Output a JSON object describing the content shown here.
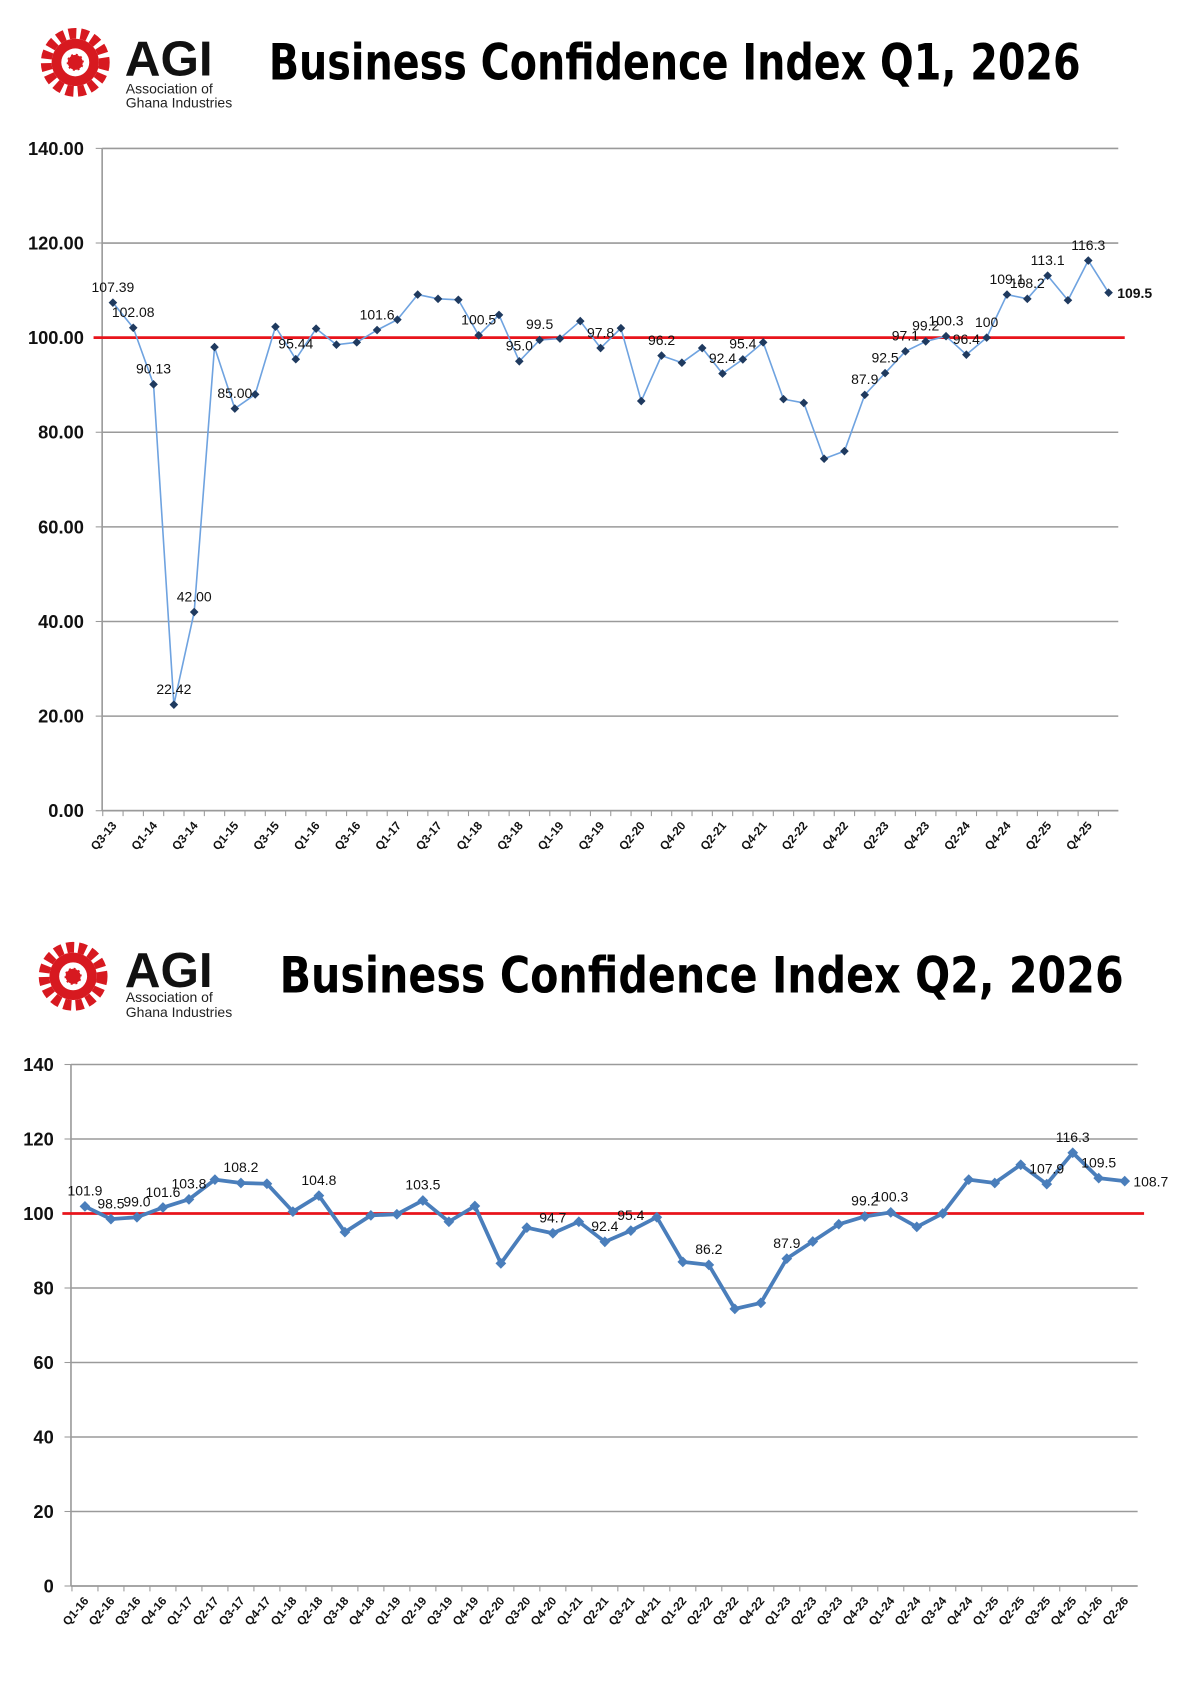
{
  "chart_data": [
    {
      "type": "line",
      "logo": {
        "name": "AGI",
        "line1": "Association of",
        "line2": "Ghana Industries"
      },
      "title": "Business Confidence Index Q1, 2026",
      "categories": [
        "Q3-13",
        null,
        "Q1-14",
        null,
        "Q3-14",
        null,
        "Q1-15",
        null,
        "Q3-15",
        null,
        "Q1-16",
        null,
        "Q3-16",
        null,
        "Q1-17",
        null,
        "Q3-17",
        null,
        "Q1-18",
        null,
        "Q3-18",
        null,
        "Q1-19",
        null,
        "Q3-19",
        null,
        "Q2-20",
        null,
        "Q4-20",
        null,
        "Q2-21",
        null,
        "Q4-21",
        null,
        "Q2-22",
        null,
        "Q4-22",
        null,
        "Q2-23",
        null,
        "Q4-23",
        null,
        "Q2-24",
        null,
        "Q4-24",
        null,
        "Q2-25",
        null,
        "Q4-25",
        null
      ],
      "values": [
        107.39,
        102.08,
        90.13,
        22.42,
        42,
        98,
        85,
        88,
        102.3,
        95.44,
        101.9,
        98.5,
        99,
        101.6,
        103.8,
        109.1,
        108.2,
        108,
        100.5,
        104.8,
        95,
        99.5,
        99.8,
        103.5,
        97.8,
        102,
        86.6,
        96.2,
        94.7,
        97.8,
        92.4,
        95.4,
        99,
        87,
        86.2,
        74.4,
        76,
        87.9,
        92.5,
        97.1,
        99.2,
        100.3,
        96.4,
        100,
        109.1,
        108.2,
        113.1,
        107.9,
        116.3,
        109.5
      ],
      "value_labels": [
        "107.39",
        "102.08",
        "90.13",
        "22.42",
        "42.00",
        null,
        "85.00",
        null,
        null,
        "95.44",
        null,
        null,
        null,
        "101.6",
        null,
        null,
        null,
        null,
        "100.5",
        null,
        "95.0",
        "99.5",
        null,
        null,
        "97.8",
        null,
        null,
        "96.2",
        null,
        null,
        "92.4",
        "95.4",
        null,
        null,
        null,
        null,
        null,
        "87.9",
        "92.5",
        "97.1",
        "99.2",
        "100.3",
        "96.4",
        "100",
        "109.1",
        "108.2",
        "113.1",
        null,
        "116.3",
        "109.5"
      ],
      "color": "#6fa3e0",
      "marker_color": "#1f3a5f",
      "line_width": 1.5,
      "marker_size": 4,
      "last_label_color": "#e8141b",
      "reference_line": {
        "value": 100,
        "color": "#e8141b"
      },
      "ylim": [
        0,
        140
      ],
      "yticks": [
        {
          "value": 0,
          "label": "0.00"
        },
        {
          "value": 20,
          "label": "20.00"
        },
        {
          "value": 40,
          "label": "40.00"
        },
        {
          "value": 60,
          "label": "60.00"
        },
        {
          "value": 80,
          "label": "80.00"
        },
        {
          "value": 100,
          "label": "100.00"
        },
        {
          "value": 120,
          "label": "120.00"
        },
        {
          "value": 140,
          "label": "140.00"
        }
      ],
      "grid": true
    },
    {
      "type": "line",
      "logo": {
        "name": "AGI",
        "line1": "Association of",
        "line2": "Ghana Industries"
      },
      "title": "Business Confidence Index Q2, 2026",
      "categories": [
        "Q1-16",
        "Q2-16",
        "Q3-16",
        "Q4-16",
        "Q1-17",
        "Q2-17",
        "Q3-17",
        "Q4-17",
        "Q1-18",
        "Q2-18",
        "Q3-18",
        "Q4-18",
        "Q1-19",
        "Q2-19",
        "Q3-19",
        "Q4-19",
        "Q2-20",
        "Q3-20",
        "Q4-20",
        "Q1-21",
        "Q2-21",
        "Q3-21",
        "Q4-21",
        "Q1-22",
        "Q2-22",
        "Q3-22",
        "Q4-22",
        "Q1-23",
        "Q2-23",
        "Q3-23",
        "Q4-23",
        "Q1-24",
        "Q2-24",
        "Q3-24",
        "Q4-24",
        "Q1-25",
        "Q2-25",
        "Q3-25",
        "Q4-25",
        "Q1-26",
        "Q2-26"
      ],
      "values": [
        101.9,
        98.5,
        99,
        101.6,
        103.8,
        109.1,
        108.2,
        108,
        100.5,
        104.8,
        95,
        99.5,
        99.8,
        103.5,
        97.8,
        102,
        86.6,
        96.2,
        94.7,
        97.8,
        92.4,
        95.4,
        99,
        87,
        86.2,
        74.4,
        76,
        87.9,
        92.5,
        97.1,
        99.2,
        100.3,
        96.4,
        100,
        109.1,
        108.2,
        113.1,
        107.9,
        116.3,
        109.5,
        108.7
      ],
      "value_labels": [
        "101.9",
        "98.5",
        "99.0",
        "101.6",
        "103.8",
        null,
        "108.2",
        null,
        null,
        "104.8",
        null,
        null,
        null,
        "103.5",
        null,
        null,
        null,
        null,
        "94.7",
        null,
        "92.4",
        "95.4",
        null,
        null,
        "86.2",
        null,
        null,
        "87.9",
        null,
        null,
        "99.2",
        "100.3",
        null,
        null,
        null,
        null,
        null,
        "107.9",
        "116.3",
        "109.5",
        "108.7"
      ],
      "color": "#4a7ebb",
      "marker_color": "#4a7ebb",
      "line_width": 3.5,
      "marker_size": 5,
      "last_label_color": "#e8141b",
      "reference_line": {
        "value": 100,
        "color": "#e8141b"
      },
      "ylim": [
        0,
        140
      ],
      "yticks": [
        0,
        20,
        40,
        60,
        80,
        100,
        120,
        140
      ],
      "grid": true
    }
  ]
}
